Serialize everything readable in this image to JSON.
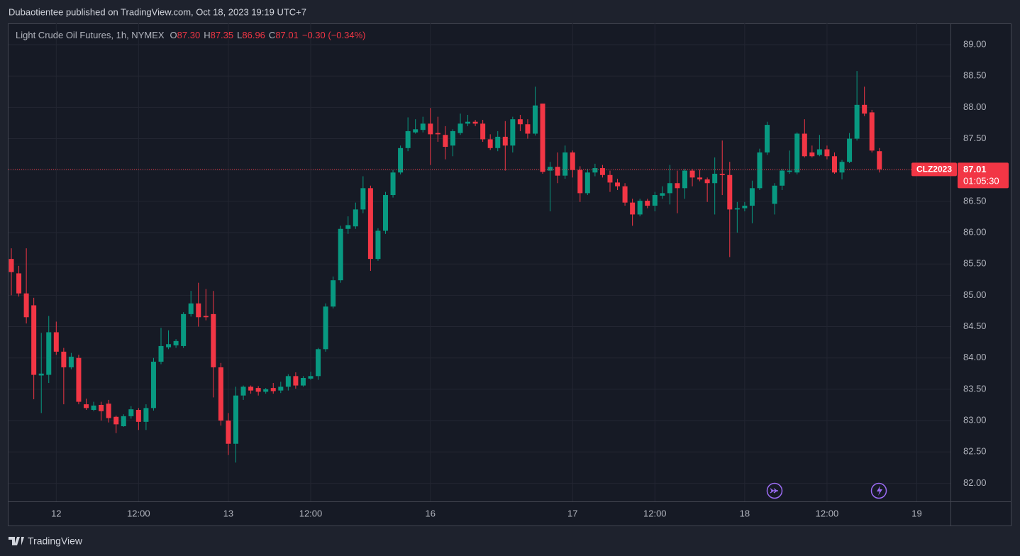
{
  "header": {
    "published": "Dubaotientee published on TradingView.com, Oct 18, 2023 19:19 UTC+7"
  },
  "footer": {
    "brand": "TradingView"
  },
  "chart_data": {
    "type": "candlestick",
    "legend": {
      "symbol": "Light Crude Oil Futures, 1h, NYMEX",
      "items": [
        {
          "key": "O",
          "value": "87.30"
        },
        {
          "key": "H",
          "value": "87.35"
        },
        {
          "key": "L",
          "value": "86.96"
        },
        {
          "key": "C",
          "value": "87.01"
        }
      ],
      "change": "−0.30 (−0.34%)"
    },
    "up_color": "#089981",
    "down_color": "#f23645",
    "grid": true,
    "xlim": [
      -0.38,
      125.5
    ],
    "xticks": [
      {
        "value": 6,
        "label": "12"
      },
      {
        "value": 17,
        "label": "12:00"
      },
      {
        "value": 29,
        "label": "13"
      },
      {
        "value": 40,
        "label": "12:00"
      },
      {
        "value": 56,
        "label": "16"
      },
      {
        "value": 75,
        "label": "17"
      },
      {
        "value": 86,
        "label": "12:00"
      },
      {
        "value": 98,
        "label": "18"
      },
      {
        "value": 109,
        "label": "12:00"
      },
      {
        "value": 121,
        "label": "19"
      }
    ],
    "ylim": [
      81.71,
      89.34
    ],
    "yticks": [
      {
        "value": 82,
        "label": "82.00"
      },
      {
        "value": 82.5,
        "label": "82.50"
      },
      {
        "value": 83,
        "label": "83.00"
      },
      {
        "value": 83.5,
        "label": "83.50"
      },
      {
        "value": 84,
        "label": "84.00"
      },
      {
        "value": 84.5,
        "label": "84.50"
      },
      {
        "value": 85,
        "label": "85.00"
      },
      {
        "value": 85.5,
        "label": "85.50"
      },
      {
        "value": 86,
        "label": "86.00"
      },
      {
        "value": 86.5,
        "label": "86.50"
      },
      {
        "value": 87,
        "label": "87.00"
      },
      {
        "value": 87.5,
        "label": "87.50"
      },
      {
        "value": 88,
        "label": "88.00"
      },
      {
        "value": 88.5,
        "label": "88.50"
      },
      {
        "value": 89,
        "label": "89.00"
      }
    ],
    "price_label": {
      "symbol": "CLZ2023",
      "value": 87.01,
      "countdown": "01:05:30"
    },
    "open": [
      85.58,
      85.35,
      85.03,
      84.84,
      83.72,
      83.73,
      84.41,
      84.1,
      83.85,
      84.0,
      83.26,
      83.17,
      83.25,
      83.27,
      83.06,
      82.91,
      83.07,
      83.17,
      82.98,
      83.2,
      83.94,
      84.17,
      84.2,
      84.19,
      84.7,
      84.87,
      84.67,
      84.7,
      83.85,
      83.0,
      82.63,
      83.4,
      83.54,
      83.52,
      83.46,
      83.52,
      83.48,
      83.54,
      83.71,
      83.56,
      83.67,
      83.71,
      84.14,
      84.82,
      85.24,
      86.06,
      86.1,
      86.37,
      86.71,
      85.58,
      86.03,
      86.6,
      86.96,
      87.35,
      87.6,
      87.64,
      87.74,
      87.59,
      87.56,
      87.39,
      87.59,
      87.74,
      87.77,
      87.74,
      87.49,
      87.35,
      87.53,
      87.39,
      87.81,
      87.73,
      87.58,
      88.06,
      86.99,
      87.05,
      86.91,
      87.28,
      87.0,
      86.63,
      86.96,
      87.03,
      86.92,
      86.8,
      86.74,
      86.48,
      86.29,
      86.51,
      86.43,
      86.59,
      86.63,
      86.79,
      86.71,
      86.99,
      86.88,
      86.85,
      86.79,
      86.94,
      86.92,
      86.37,
      86.39,
      86.43,
      86.71,
      87.28,
      86.46,
      86.75,
      86.97,
      86.96,
      87.58,
      87.28,
      87.24,
      87.33,
      87.22,
      86.96,
      87.13,
      87.5,
      88.04,
      87.92,
      87.3
    ],
    "high": [
      85.75,
      85.47,
      85.75,
      84.96,
      84.4,
      84.67,
      84.58,
      84.16,
      84.08,
      84.05,
      83.35,
      83.3,
      83.3,
      83.33,
      83.08,
      83.1,
      83.23,
      83.2,
      83.26,
      84.0,
      84.48,
      84.44,
      84.3,
      84.73,
      85.07,
      85.2,
      85.1,
      85.07,
      83.92,
      83.12,
      83.54,
      83.56,
      83.56,
      83.55,
      83.52,
      83.6,
      83.62,
      83.74,
      83.77,
      83.71,
      83.78,
      84.16,
      84.87,
      85.3,
      86.11,
      86.26,
      86.48,
      86.9,
      86.75,
      86.07,
      86.65,
      87.0,
      87.39,
      87.84,
      87.81,
      87.85,
      87.99,
      87.85,
      87.7,
      87.65,
      87.9,
      87.88,
      87.8,
      87.8,
      87.57,
      87.62,
      87.78,
      87.85,
      87.88,
      87.81,
      88.33,
      88.06,
      87.13,
      87.28,
      87.39,
      87.31,
      87.06,
      87.02,
      87.1,
      87.08,
      86.99,
      86.86,
      86.79,
      86.54,
      86.54,
      86.54,
      86.65,
      86.74,
      87.08,
      86.99,
      87.02,
      87.02,
      87.01,
      86.88,
      87.2,
      87.47,
      87.13,
      86.49,
      86.49,
      86.83,
      87.34,
      87.77,
      86.79,
      87.02,
      87.31,
      87.6,
      87.81,
      87.39,
      87.56,
      87.39,
      87.28,
      87.16,
      87.59,
      88.58,
      88.33,
      87.96,
      87.35
    ],
    "low": [
      85.0,
      84.98,
      84.55,
      83.34,
      83.12,
      83.6,
      84.05,
      83.26,
      83.82,
      83.26,
      83.17,
      83.15,
      83.0,
      82.97,
      82.8,
      82.9,
      83.03,
      82.85,
      82.85,
      83.16,
      83.9,
      84.14,
      84.16,
      84.16,
      84.66,
      84.5,
      84.6,
      83.37,
      82.92,
      82.45,
      82.33,
      83.33,
      83.43,
      83.4,
      83.43,
      83.43,
      83.44,
      83.48,
      83.51,
      83.54,
      83.65,
      83.65,
      84.1,
      84.79,
      85.2,
      85.98,
      86.06,
      86.31,
      85.39,
      85.55,
      85.98,
      86.56,
      86.93,
      87.3,
      87.58,
      87.6,
      87.08,
      87.45,
      87.17,
      87.22,
      87.56,
      87.7,
      87.7,
      87.45,
      87.32,
      87.3,
      86.99,
      87.28,
      87.62,
      87.5,
      87.55,
      86.94,
      86.34,
      86.79,
      86.86,
      86.88,
      86.49,
      86.6,
      86.9,
      86.88,
      86.65,
      86.68,
      86.43,
      86.11,
      86.26,
      86.39,
      86.34,
      86.54,
      86.45,
      86.31,
      86.54,
      86.74,
      86.82,
      86.49,
      86.29,
      86.6,
      85.61,
      86.0,
      86.34,
      86.15,
      86.68,
      87.24,
      86.29,
      86.68,
      86.94,
      86.93,
      87.2,
      87.2,
      87.22,
      87.17,
      86.94,
      86.85,
      87.11,
      87.47,
      87.86,
      87.28,
      86.96
    ],
    "close": [
      85.37,
      85.03,
      84.65,
      83.73,
      83.75,
      84.41,
      84.1,
      83.85,
      84.02,
      83.3,
      83.2,
      83.24,
      83.15,
      83.04,
      82.94,
      83.07,
      83.18,
      82.98,
      83.2,
      83.94,
      84.19,
      84.22,
      84.27,
      84.7,
      84.87,
      84.65,
      84.65,
      83.85,
      83.0,
      82.63,
      83.4,
      83.54,
      83.48,
      83.46,
      83.5,
      83.47,
      83.54,
      83.71,
      83.56,
      83.68,
      83.71,
      84.14,
      84.82,
      85.24,
      86.06,
      86.12,
      86.37,
      86.71,
      85.58,
      86.03,
      86.6,
      86.96,
      87.35,
      87.62,
      87.65,
      87.74,
      87.57,
      87.57,
      87.37,
      87.62,
      87.74,
      87.77,
      87.74,
      87.49,
      87.35,
      87.53,
      87.39,
      87.81,
      87.73,
      87.58,
      88.03,
      86.97,
      87.05,
      86.91,
      87.28,
      87.0,
      86.63,
      86.96,
      87.03,
      86.92,
      86.8,
      86.74,
      86.48,
      86.29,
      86.51,
      86.43,
      86.6,
      86.63,
      86.79,
      86.71,
      86.99,
      86.88,
      86.85,
      86.79,
      86.94,
      86.92,
      86.37,
      86.39,
      86.43,
      86.71,
      87.28,
      87.72,
      86.75,
      86.99,
      86.99,
      87.58,
      87.22,
      87.22,
      87.33,
      87.22,
      86.96,
      87.13,
      87.5,
      88.04,
      87.9,
      87.31,
      87.01
    ]
  }
}
